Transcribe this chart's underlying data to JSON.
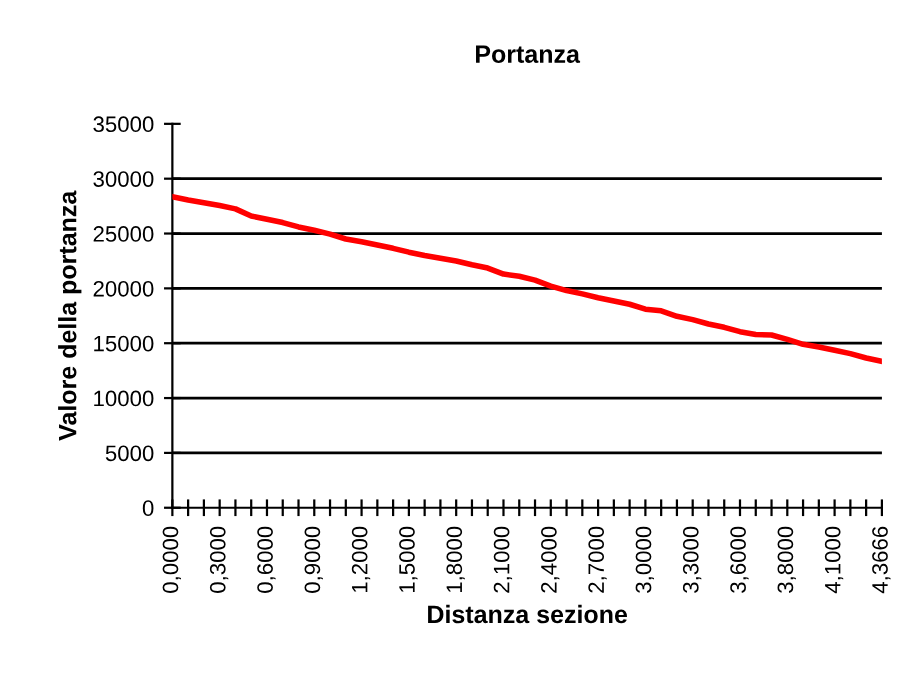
{
  "chart_data": {
    "type": "line",
    "title": "Portanza",
    "xlabel": "Distanza sezione",
    "ylabel": "Valore della portanza",
    "categories": [
      "0,0000",
      null,
      null,
      "0,3000",
      null,
      null,
      "0,6000",
      null,
      null,
      "0,9000",
      null,
      null,
      "1,2000",
      null,
      null,
      "1,5000",
      null,
      null,
      "1,8000",
      null,
      null,
      "2,1000",
      null,
      null,
      "2,4000",
      null,
      null,
      "2,7000",
      null,
      null,
      "3,0000",
      null,
      null,
      "3,3000",
      null,
      null,
      "3,6000",
      null,
      null,
      "3,8000",
      null,
      null,
      "4,1000",
      null,
      null,
      "4,3666"
    ],
    "series": [
      {
        "color": "#ff0000",
        "values": [
          28350,
          28050,
          27800,
          27550,
          27250,
          26600,
          26300,
          26000,
          25600,
          25300,
          24950,
          24500,
          24250,
          23950,
          23650,
          23300,
          23000,
          22750,
          22500,
          22150,
          21850,
          21300,
          21100,
          20750,
          20200,
          19800,
          19500,
          19150,
          18850,
          18550,
          18100,
          17950,
          17450,
          17150,
          16750,
          16450,
          16050,
          15800,
          15750,
          15350,
          14900,
          14650,
          14350,
          14050,
          13650,
          13350
        ]
      }
    ],
    "ylim": [
      0,
      35000
    ],
    "yticks": [
      0,
      5000,
      10000,
      15000,
      20000,
      25000,
      30000,
      35000
    ],
    "grid": "y",
    "legend": false,
    "marker": "none",
    "line_style": "solid"
  }
}
